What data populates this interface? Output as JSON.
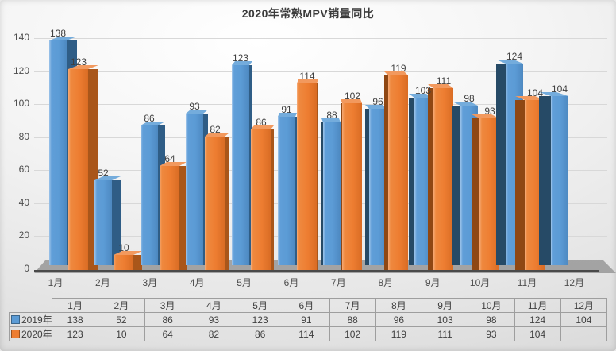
{
  "title": "2020年常熟MPV销量同比",
  "chart_data": {
    "type": "bar",
    "style": "3d-clustered-column",
    "title": "2020年常熟MPV销量同比",
    "categories": [
      "1月",
      "2月",
      "3月",
      "4月",
      "5月",
      "6月",
      "7月",
      "8月",
      "9月",
      "10月",
      "11月",
      "12月"
    ],
    "series": [
      {
        "name": "2019年",
        "color": "#5B9BD5",
        "values": [
          138,
          52,
          86,
          93,
          123,
          91,
          88,
          96,
          103,
          98,
          124,
          104
        ]
      },
      {
        "name": "2020年",
        "color": "#ED7D31",
        "values": [
          123,
          10,
          64,
          82,
          86,
          114,
          102,
          119,
          111,
          93,
          104,
          null
        ]
      }
    ],
    "xlabel": "",
    "ylabel": "",
    "ylim": [
      0,
      140
    ],
    "yticks": [
      0,
      20,
      40,
      60,
      80,
      100,
      120,
      140
    ],
    "grid": true,
    "data_labels": true,
    "data_table": true,
    "legend_position": "data-table-left"
  },
  "colors": {
    "blue_front": "#5B9BD5",
    "blue_front_hi": "#9FC5EA",
    "blue_front_dk": "#4D88C0",
    "blue_side": "#2F5D86",
    "blue_side_l": "#264A66",
    "blue_top": "#74ACDC",
    "orange_front": "#ED7D31",
    "orange_front_hi": "#F6AB77",
    "orange_front_dk": "#D96C24",
    "orange_side": "#A9561A",
    "orange_side_l": "#8F4713",
    "orange_top": "#F2995E",
    "axis_text": "#4D4D4D",
    "label_text": "#3F3F3F",
    "floor": "#A9A9A9",
    "axis_line": "#4A4A4A",
    "gridline": "#D8D8D8",
    "table_border": "#9E9E9E"
  }
}
